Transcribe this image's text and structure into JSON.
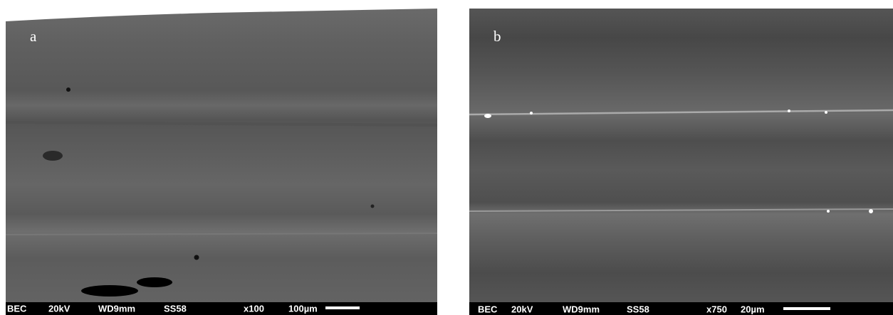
{
  "panels": [
    {
      "label": "a",
      "info_bar": [
        "BEC",
        "20kV",
        "WD9mm",
        "SS58",
        "x100",
        "100µm"
      ]
    },
    {
      "label": "b",
      "info_bar": [
        "BEC",
        "20kV",
        "WD9mm",
        "SS58",
        "x750",
        "20µm"
      ]
    }
  ]
}
